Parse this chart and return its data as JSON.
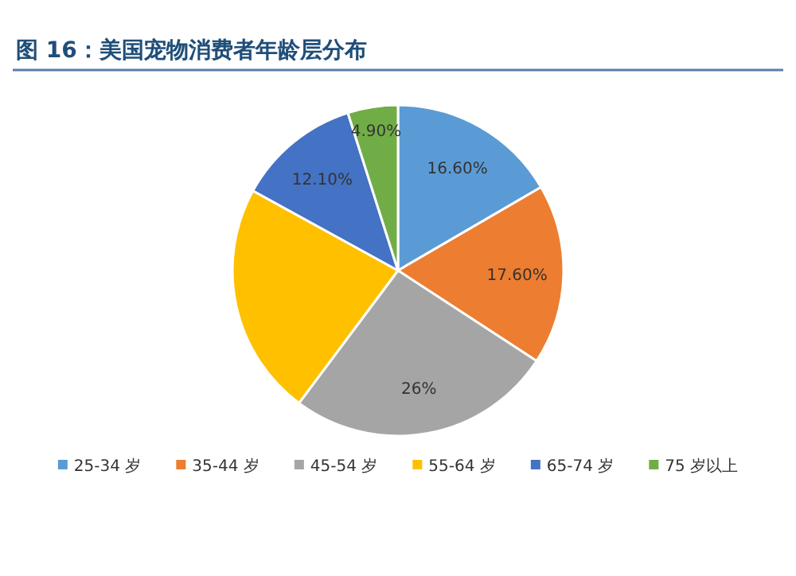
{
  "chart_data": {
    "type": "pie",
    "title": "图 16：美国宠物消费者年龄层分布",
    "categories": [
      "25-34 岁",
      "35-44 岁",
      "45-54 岁",
      "55-64 岁",
      "65-74 岁",
      "75 岁以上"
    ],
    "values": [
      16.6,
      17.6,
      26,
      22.8,
      12.1,
      4.9
    ],
    "value_labels": [
      "16.60%",
      "17.60%",
      "26%",
      null,
      "12.10%",
      "4.90%"
    ],
    "colors": [
      "#5b9bd5",
      "#ed7d31",
      "#a5a5a5",
      "#ffc000",
      "#4472c4",
      "#70ad47"
    ],
    "legend": "bottom"
  }
}
